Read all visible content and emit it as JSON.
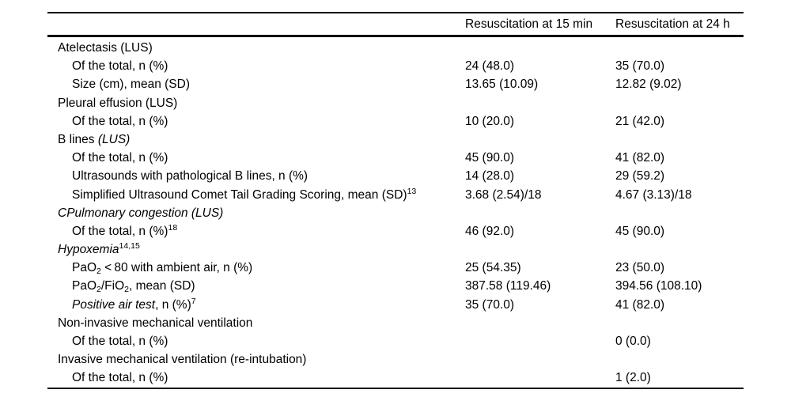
{
  "table": {
    "columns": [
      "",
      "Resuscitation at 15 min",
      "Resuscitation at 24 h"
    ],
    "rows": [
      {
        "indent": 0,
        "label": [
          {
            "t": "Atelectasis (LUS)"
          }
        ],
        "v15": "",
        "v24": ""
      },
      {
        "indent": 1,
        "label": [
          {
            "t": "Of the total, n (%)"
          }
        ],
        "v15": "24 (48.0)",
        "v24": "35 (70.0)"
      },
      {
        "indent": 1,
        "label": [
          {
            "t": "Size (cm), mean (SD)"
          }
        ],
        "v15": "13.65 (10.09)",
        "v24": "12.82 (9.02)"
      },
      {
        "indent": 0,
        "label": [
          {
            "t": "Pleural effusion (LUS)"
          }
        ],
        "v15": "",
        "v24": ""
      },
      {
        "indent": 1,
        "label": [
          {
            "t": "Of the total, n (%)"
          }
        ],
        "v15": "10 (20.0)",
        "v24": "21 (42.0)"
      },
      {
        "indent": 0,
        "label": [
          {
            "t": "B lines "
          },
          {
            "t": "(LUS)",
            "i": true
          }
        ],
        "v15": "",
        "v24": ""
      },
      {
        "indent": 1,
        "label": [
          {
            "t": "Of the total, n (%)"
          }
        ],
        "v15": "45 (90.0)",
        "v24": "41 (82.0)"
      },
      {
        "indent": 1,
        "label": [
          {
            "t": "Ultrasounds with pathological B lines, n (%)"
          }
        ],
        "v15": "14 (28.0)",
        "v24": "29 (59.2)"
      },
      {
        "indent": 1,
        "label": [
          {
            "t": "Simplified Ultrasound Comet Tail Grading Scoring, mean (SD)"
          },
          {
            "t": "13",
            "sup": true
          }
        ],
        "v15": "3.68 (2.54)/18",
        "v24": "4.67 (3.13)/18"
      },
      {
        "indent": 0,
        "label": [
          {
            "t": "CPulmonary congestion (LUS)",
            "i": true
          }
        ],
        "v15": "",
        "v24": ""
      },
      {
        "indent": 1,
        "label": [
          {
            "t": "Of the total, n (%)"
          },
          {
            "t": "18",
            "sup": true
          }
        ],
        "v15": "46 (92.0)",
        "v24": "45 (90.0)"
      },
      {
        "indent": 0,
        "label": [
          {
            "t": "Hypoxemia",
            "i": true
          },
          {
            "t": "14,15",
            "sup": true
          }
        ],
        "v15": "",
        "v24": ""
      },
      {
        "indent": 1,
        "label": [
          {
            "t": "PaO"
          },
          {
            "t": "2",
            "sub": true
          },
          {
            "t": " < 80 with ambient air, n (%)"
          }
        ],
        "v15": "25 (54.35)",
        "v24": "23 (50.0)"
      },
      {
        "indent": 1,
        "label": [
          {
            "t": "PaO"
          },
          {
            "t": "2",
            "sub": true
          },
          {
            "t": "/FiO"
          },
          {
            "t": "2",
            "sub": true
          },
          {
            "t": ", mean (SD)"
          }
        ],
        "v15": "387.58 (119.46)",
        "v24": "394.56 (108.10)"
      },
      {
        "indent": 1,
        "label": [
          {
            "t": "Positive air test",
            "i": true
          },
          {
            "t": ", n (%)"
          },
          {
            "t": "7",
            "sup": true
          }
        ],
        "v15": "35 (70.0)",
        "v24": "41 (82.0)"
      },
      {
        "indent": 0,
        "label": [
          {
            "t": "Non-invasive mechanical ventilation"
          }
        ],
        "v15": "",
        "v24": ""
      },
      {
        "indent": 1,
        "label": [
          {
            "t": "Of the total, n (%)"
          }
        ],
        "v15": "",
        "v24": "0 (0.0)"
      },
      {
        "indent": 0,
        "label": [
          {
            "t": "Invasive mechanical ventilation (re-intubation)"
          }
        ],
        "v15": "",
        "v24": ""
      },
      {
        "indent": 1,
        "label": [
          {
            "t": "Of the total, n (%)"
          }
        ],
        "v15": "",
        "v24": "1 (2.0)"
      }
    ]
  }
}
